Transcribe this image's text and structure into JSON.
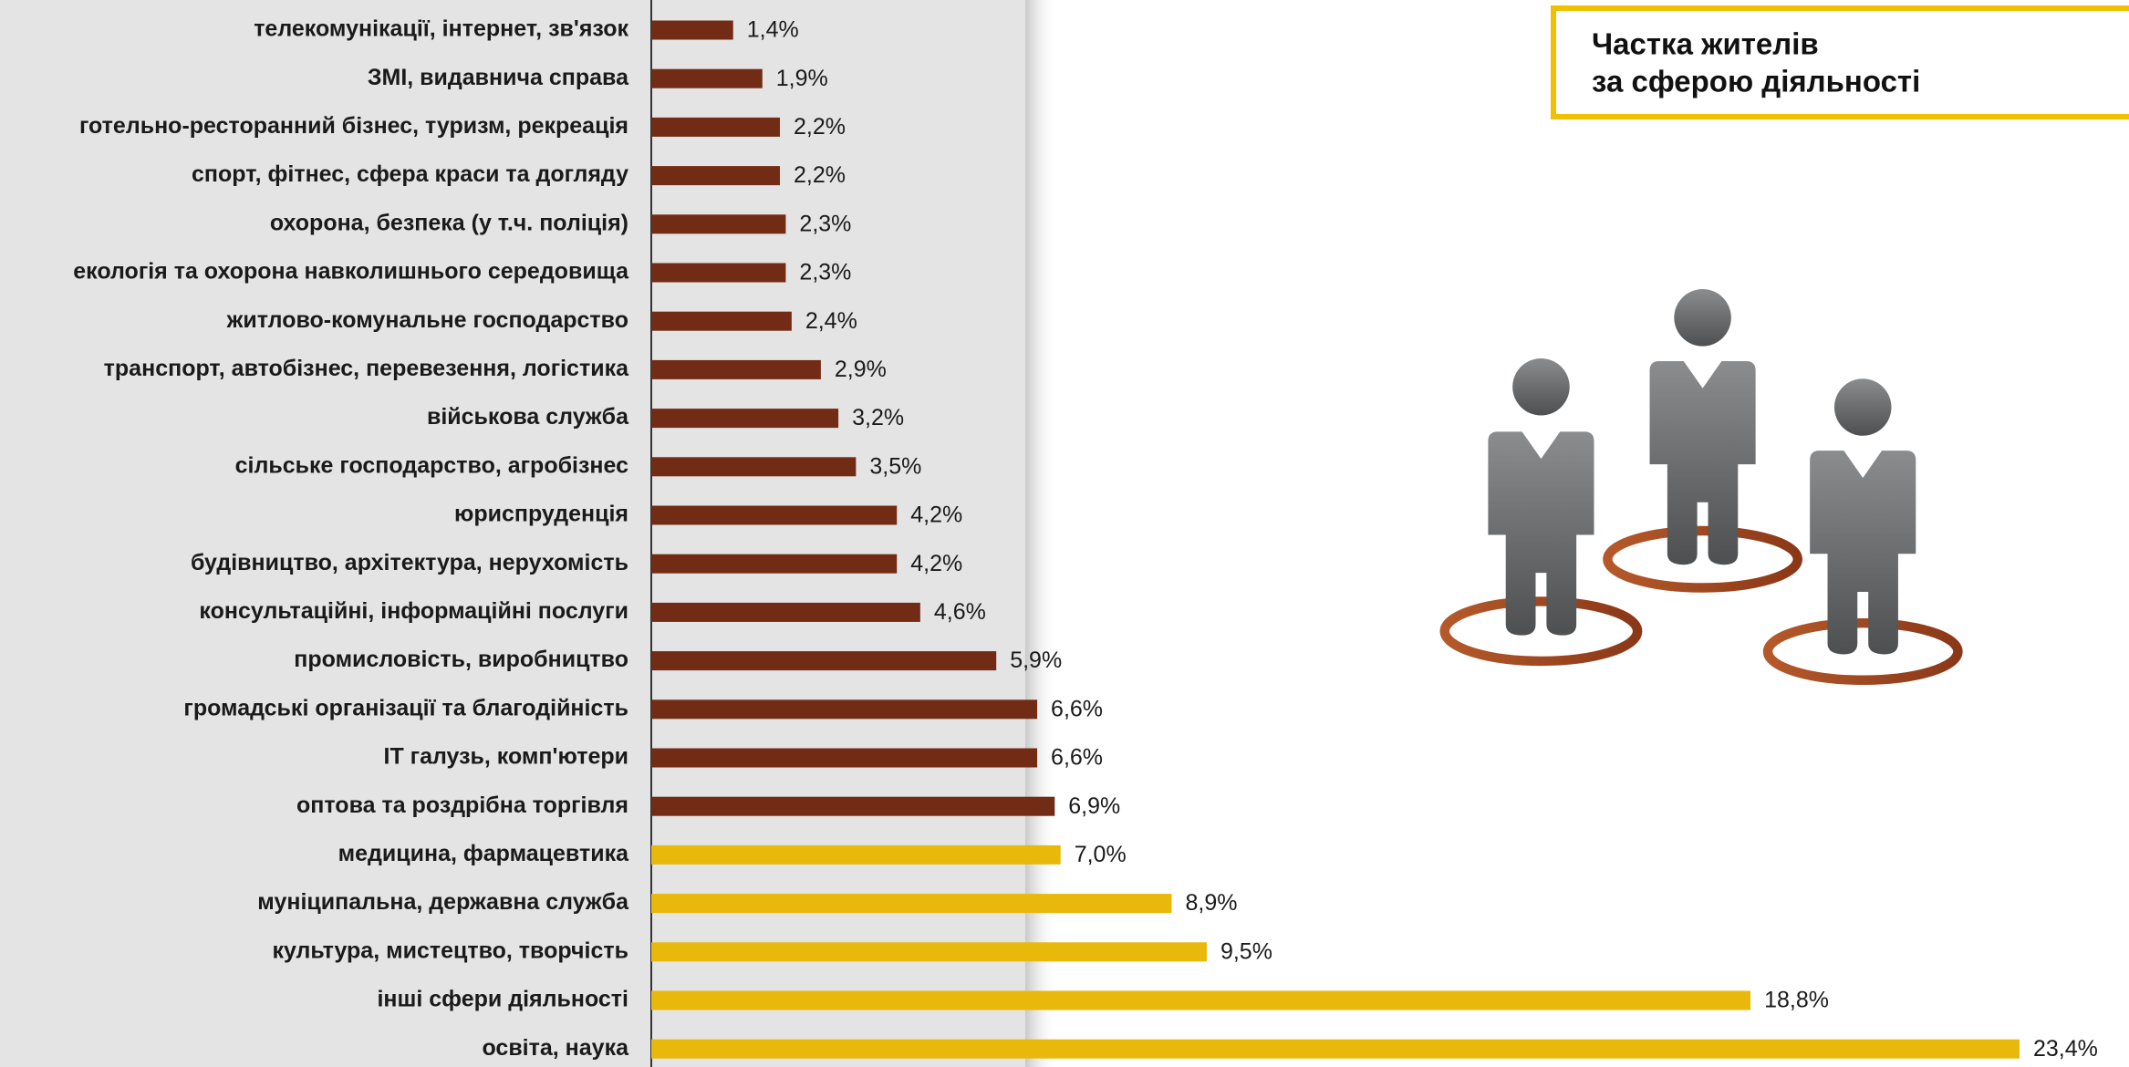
{
  "chart_data": {
    "type": "barh",
    "title": [
      "Частка жителів",
      "за сферою діяльності"
    ],
    "categories": [
      "телекомунікації, інтернет, зв'язок",
      "ЗМІ, видавнича справа",
      "готельно-ресторанний бізнес, туризм, рекреація",
      "спорт, фітнес, сфера краси та догляду",
      "охорона, безпека (у т.ч. поліція)",
      "екологія та охорона навколишнього середовища",
      "житлово-комунальне господарство",
      "транспорт, автобізнес, перевезення, логістика",
      "військова служба",
      "сільське господарство, агробізнес",
      "юриспруденція",
      "будівництво, архітектура, нерухомість",
      "консультаційні, інформаційні послуги",
      "промисловість, виробництво",
      "громадські організації та благодійність",
      "ІТ галузь, комп'ютери",
      "оптова та роздрібна торгівля",
      "медицина, фармацевтика",
      "муніципальна, державна служба",
      "культура, мистецтво, творчість",
      "інші сфери діяльності",
      "освіта, наука"
    ],
    "values": [
      1.4,
      1.9,
      2.2,
      2.2,
      2.3,
      2.3,
      2.4,
      2.9,
      3.2,
      3.5,
      4.2,
      4.2,
      4.6,
      5.9,
      6.6,
      6.6,
      6.9,
      7.0,
      8.9,
      9.5,
      18.8,
      23.4
    ],
    "value_labels": [
      "1,4%",
      "1,9%",
      "2,2%",
      "2,2%",
      "2,3%",
      "2,3%",
      "2,4%",
      "2,9%",
      "3,2%",
      "3,5%",
      "4,2%",
      "4,2%",
      "4,6%",
      "5,9%",
      "6,6%",
      "6,6%",
      "6,9%",
      "7,0%",
      "8,9%",
      "9,5%",
      "18,8%",
      "23,4%"
    ],
    "colors": [
      "#722b14",
      "#722b14",
      "#722b14",
      "#722b14",
      "#722b14",
      "#722b14",
      "#722b14",
      "#722b14",
      "#722b14",
      "#722b14",
      "#722b14",
      "#722b14",
      "#722b14",
      "#722b14",
      "#722b14",
      "#722b14",
      "#722b14",
      "#e8b90a",
      "#e8b90a",
      "#e8b90a",
      "#e8b90a",
      "#e8b90a"
    ]
  }
}
